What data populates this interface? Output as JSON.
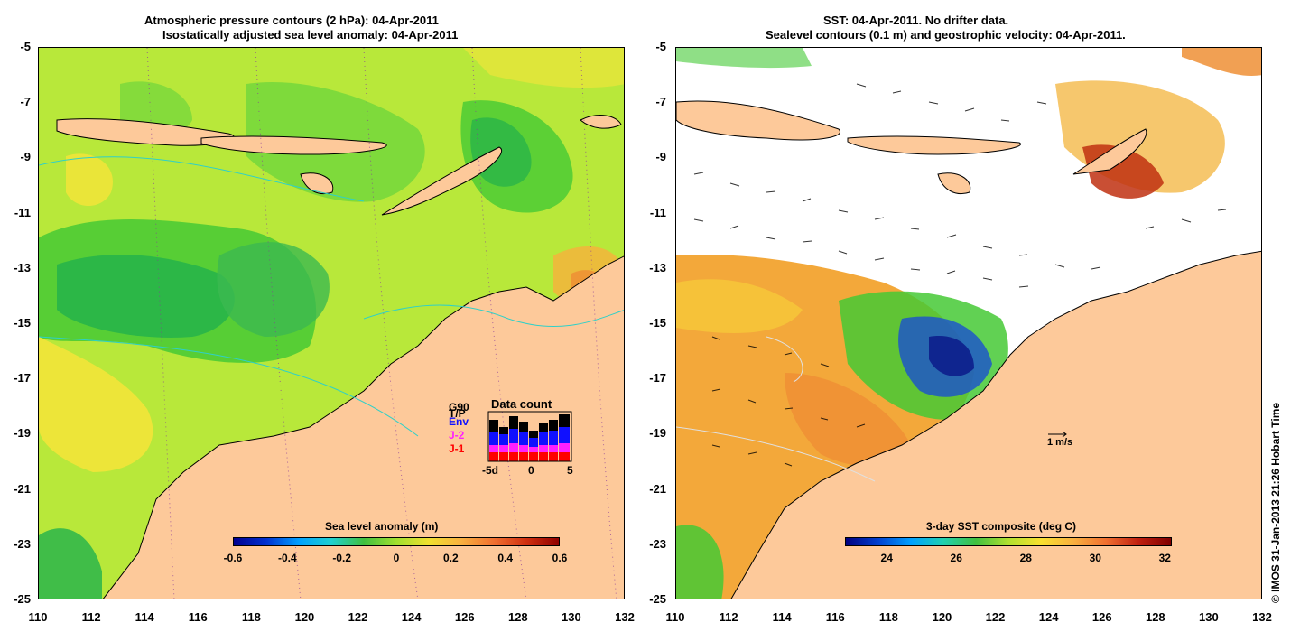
{
  "left_panel": {
    "title_line1": "Atmospheric pressure contours (2 hPa): 04-Apr-2011",
    "title_line2": "Isostatically adjusted sea level anomaly: 04-Apr-2011",
    "colorbar": {
      "title": "Sea level anomaly (m)",
      "ticks": [
        "-0.6",
        "-0.4",
        "-0.2",
        "0",
        "0.2",
        "0.4",
        "0.6"
      ]
    },
    "inset": {
      "title": "Data count",
      "legend": [
        {
          "label": "G90",
          "color": "#000000"
        },
        {
          "label": "T/P",
          "color": "#000000"
        },
        {
          "label": "Env",
          "color": "#1010ff"
        },
        {
          "label": "J-2",
          "color": "#ff20ff"
        },
        {
          "label": "J-1",
          "color": "#ff0000"
        }
      ],
      "x_ticks": [
        "-5d",
        "0",
        "5"
      ]
    }
  },
  "right_panel": {
    "title_line1": "SST: 04-Apr-2011. No drifter data.",
    "title_line2": "Sealevel contours (0.1 m) and geostrophic velocity: 04-Apr-2011.",
    "colorbar": {
      "title": "3-day SST composite (deg C)",
      "ticks": [
        "24",
        "26",
        "28",
        "30",
        "32"
      ]
    },
    "scale_label": "1 m/s"
  },
  "axes": {
    "lat_ticks": [
      "-5",
      "-7",
      "-9",
      "-11",
      "-13",
      "-15",
      "-17",
      "-19",
      "-21",
      "-23",
      "-25"
    ],
    "lon_ticks": [
      "110",
      "112",
      "114",
      "116",
      "118",
      "120",
      "122",
      "124",
      "126",
      "128",
      "130",
      "132"
    ]
  },
  "credit": "© IMOS 31-Jan-2013 21:26 Hobart Time",
  "colors": {
    "land": "#fdc99a",
    "sla_background": "#b8e83a",
    "sst_gap": "#ffffff"
  }
}
